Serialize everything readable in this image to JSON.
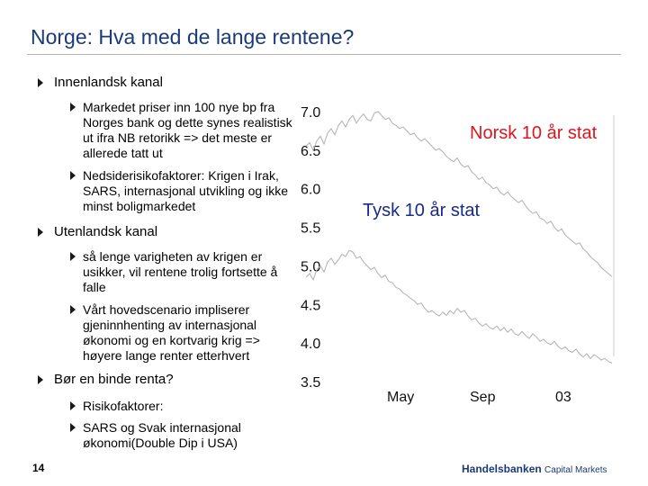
{
  "title": "Norge: Hva med de lange rentene?",
  "bullets": {
    "b1": "Innenlandsk kanal",
    "b1_1": "Markedet priser inn 100 nye bp fra\nNorges bank og dette synes realistisk\nut ifra NB retorikk => det meste er\nallerede tatt ut",
    "b1_2": "Nedsiderisikofaktorer: Krigen i Irak,\nSARS, internasjonal utvikling og ikke\nminst boligmarkedet",
    "b2": "Utenlandsk kanal",
    "b2_1": "så lenge varigheten av krigen er\nusikker, vil rentene trolig fortsette å\nfalle",
    "b2_2": "Vårt hovedscenario impliserer\ngjeninnhenting av internasjonal\nøkonomi og en kortvarig krig =>\nhøyere lange renter etterhvert",
    "b3": "Bør en binde renta?",
    "b3_1": "Risikofaktorer:",
    "b3_2": "SARS og Svak internasjonal\nøkonomi(Double Dip i USA)"
  },
  "page_number": "14",
  "logo": {
    "brand": "Handelsbanken",
    "sub": "Capital Markets"
  },
  "chart_data": {
    "type": "line",
    "y_tick_labels": [
      "7.0",
      "6.5",
      "6.0",
      "5.5",
      "5.0",
      "4.5",
      "4.0",
      "3.5"
    ],
    "ylim": [
      3.5,
      7.0
    ],
    "x_tick_labels": [
      "May",
      "Sep",
      "03"
    ],
    "annotations": [
      "Norsk 10 år stat",
      "Tysk 10 år stat"
    ],
    "annotation_colors": [
      "#e0141e",
      "#1a2a8c"
    ],
    "series_color": "#b0b0b0",
    "series": [
      {
        "x": [
          0,
          4,
          8,
          12,
          16,
          20,
          24,
          28,
          32,
          36,
          40,
          44,
          48,
          52,
          56,
          60,
          64,
          68,
          72,
          76,
          80,
          84,
          88,
          92,
          96,
          100,
          104,
          108,
          112,
          116,
          120,
          124,
          128,
          132,
          136,
          140,
          144,
          148,
          152,
          156,
          160,
          164,
          168,
          172,
          176,
          180,
          184,
          188,
          192,
          196,
          200,
          204,
          208,
          212,
          216,
          220,
          224,
          228,
          232,
          236,
          240,
          244,
          248,
          252,
          256,
          260,
          264,
          268,
          272,
          276,
          280,
          284,
          288,
          292,
          296,
          300,
          304,
          308,
          312,
          316,
          320,
          324,
          328,
          332,
          336,
          340
        ],
        "values": [
          6.55,
          6.6,
          6.5,
          6.62,
          6.68,
          6.58,
          6.72,
          6.78,
          6.7,
          6.82,
          6.88,
          6.8,
          6.9,
          6.95,
          6.85,
          6.92,
          6.97,
          6.9,
          6.88,
          6.98,
          7.0,
          6.95,
          6.9,
          6.92,
          6.85,
          6.82,
          6.78,
          6.8,
          6.75,
          6.7,
          6.72,
          6.66,
          6.62,
          6.65,
          6.6,
          6.55,
          6.5,
          6.52,
          6.48,
          6.42,
          6.38,
          6.35,
          6.4,
          6.32,
          6.28,
          6.3,
          6.22,
          6.18,
          6.12,
          6.15,
          6.08,
          6.05,
          6.0,
          6.02,
          5.95,
          5.92,
          5.96,
          5.9,
          5.86,
          5.82,
          5.85,
          5.78,
          5.72,
          5.68,
          5.7,
          5.62,
          5.6,
          5.55,
          5.58,
          5.5,
          5.45,
          5.48,
          5.4,
          5.36,
          5.32,
          5.28,
          5.3,
          5.22,
          5.18,
          5.12,
          5.08,
          5.04,
          4.98,
          4.94,
          4.9,
          4.86
        ]
      },
      {
        "x": [
          0,
          4,
          8,
          12,
          16,
          20,
          24,
          28,
          32,
          36,
          40,
          44,
          48,
          52,
          56,
          60,
          64,
          68,
          72,
          76,
          80,
          84,
          88,
          92,
          96,
          100,
          104,
          108,
          112,
          116,
          120,
          124,
          128,
          132,
          136,
          140,
          144,
          148,
          152,
          156,
          160,
          164,
          168,
          172,
          176,
          180,
          184,
          188,
          192,
          196,
          200,
          204,
          208,
          212,
          216,
          220,
          224,
          228,
          232,
          236,
          240,
          244,
          248,
          252,
          256,
          260,
          264,
          268,
          272,
          276,
          280,
          284,
          288,
          292,
          296,
          300,
          304,
          308,
          312,
          316,
          320,
          324,
          328,
          332,
          336,
          340
        ],
        "values": [
          4.85,
          4.9,
          4.82,
          4.95,
          5.0,
          4.92,
          5.05,
          5.1,
          5.02,
          5.08,
          5.15,
          5.12,
          5.2,
          5.18,
          5.1,
          5.12,
          5.05,
          5.0,
          4.95,
          4.98,
          4.9,
          4.85,
          4.88,
          4.8,
          4.78,
          4.72,
          4.7,
          4.65,
          4.62,
          4.58,
          4.55,
          4.5,
          4.52,
          4.45,
          4.4,
          4.42,
          4.38,
          4.35,
          4.4,
          4.36,
          4.42,
          4.38,
          4.45,
          4.4,
          4.42,
          4.35,
          4.3,
          4.32,
          4.26,
          4.22,
          4.25,
          4.2,
          4.18,
          4.22,
          4.16,
          4.2,
          4.14,
          4.18,
          4.12,
          4.1,
          4.15,
          4.1,
          4.06,
          4.12,
          4.08,
          4.02,
          4.05,
          4.0,
          3.98,
          4.02,
          3.96,
          3.92,
          3.95,
          3.9,
          3.88,
          3.92,
          3.86,
          3.82,
          3.86,
          3.8,
          3.85,
          3.82,
          3.78,
          3.8,
          3.76,
          3.74
        ]
      }
    ]
  }
}
